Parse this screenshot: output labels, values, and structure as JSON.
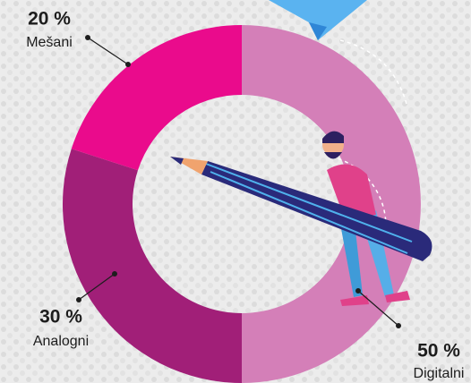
{
  "chart_data": {
    "type": "donut",
    "categories": [
      "Digitalni",
      "Analogni",
      "Mešani"
    ],
    "values": [
      50,
      30,
      20
    ],
    "value_labels": [
      "50 %",
      "30 %",
      "20 %"
    ],
    "colors": [
      "#d47fb8",
      "#a11f78",
      "#ea0b8c"
    ]
  }
}
